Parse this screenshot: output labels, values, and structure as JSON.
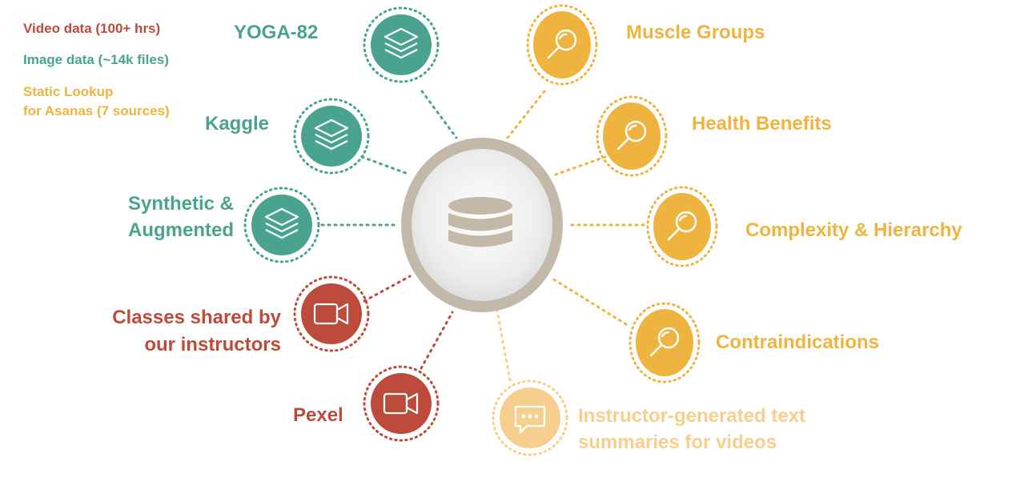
{
  "legend": {
    "video": "Video data (100+ hrs)",
    "image": "Image data (~14k files)",
    "static": "Static Lookup\nfor Asanas (7 sources)"
  },
  "sources": {
    "yoga82": "YOGA-82",
    "kaggle": "Kaggle",
    "synthetic": "Synthetic &\nAugmented",
    "classes": "Classes shared by\nour instructors",
    "pexel": "Pexel"
  },
  "lookups": {
    "muscle_groups": "Muscle Groups",
    "health_benefits": "Health Benefits",
    "complexity": "Complexity & Hierarchy",
    "contraindications": "Contraindications"
  },
  "summaries": "Instructor-generated text\nsummaries for videos",
  "colors": {
    "image": "#4aa38f",
    "video": "#bd4b3c",
    "static": "#efb43f",
    "text": "#f6cf8e",
    "hub": "#c2b9a9"
  },
  "icons": {
    "hub": "database-icon",
    "image_nodes": "layers-icon",
    "video_nodes": "video-camera-icon",
    "static_nodes": "magnifier-icon",
    "text_node": "chat-bubble-icon"
  }
}
